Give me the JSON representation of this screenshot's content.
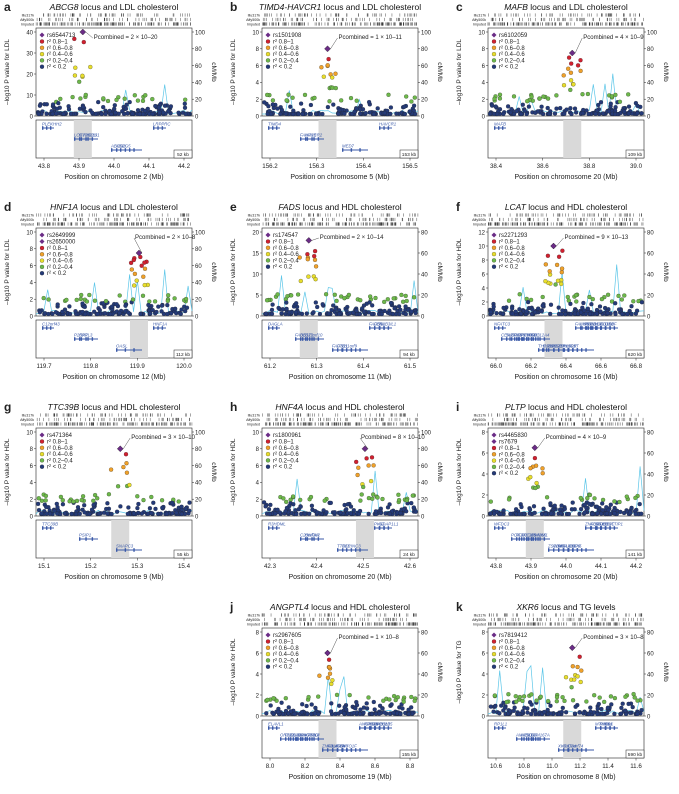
{
  "colors": {
    "r2_08_1": "#d1202f",
    "r2_06_08": "#f0a12a",
    "r2_04_06": "#e8de2c",
    "r2_02_04": "#6db84a",
    "r2_lt_02": "#243a78",
    "lead_snp": "#6b2c86",
    "recomb_line": "#5cc6e8",
    "gene": "#3b5aa8",
    "highlight": "#d9d9d9"
  },
  "track_labels": [
    "Illu317k",
    "Affy500k",
    "Imputed"
  ],
  "legend_r2": [
    "r² 0.8–1",
    "r² 0.6–0.8",
    "r² 0.4–0.6",
    "r² 0.2–0.4",
    "r² < 0.2"
  ],
  "panels": [
    {
      "letter": "a",
      "gene": "ABCG8",
      "title_rest": " locus and LDL cholesterol",
      "ylabel": "–log10 P value for LDL",
      "y2label": "cM/Mb",
      "yticks": [
        "0",
        "10",
        "20",
        "30",
        "40"
      ],
      "y2ticks": [
        "0",
        "20",
        "40",
        "60",
        "80",
        "100"
      ],
      "xlabel": "Position on chromosome 2 (Mb)",
      "xticks": [
        "43.8",
        "43.9",
        "44.0",
        "44.1",
        "44.2"
      ],
      "snps": [
        "rs6544713"
      ],
      "pcomb": "Pcombined = 2 × 10–20",
      "scale": "52 kb",
      "genes": [
        "PLEKHH2",
        "DYNC2LI1",
        "ABCG5",
        "LRPPRC",
        "LOC729819",
        "ABCG8"
      ],
      "chart_data": {
        "type": "scatter",
        "y_range": [
          0,
          40
        ],
        "lead_x": 44.0,
        "lead_y": 40
      }
    },
    {
      "letter": "b",
      "gene": "TIMD4-HAVCR1",
      "title_rest": " locus and LDL cholesterol",
      "ylabel": "–log10 P value for LDL",
      "y2label": "cM/Mb",
      "yticks": [
        "0",
        "2",
        "4",
        "6",
        "8",
        "10"
      ],
      "y2ticks": [
        "0",
        "20",
        "40",
        "60",
        "80",
        "100"
      ],
      "xlabel": "Position on chromosome 5 (Mb)",
      "xticks": [
        "156.2",
        "156.3",
        "156.4",
        "156.5"
      ],
      "snps": [
        "rs1501908"
      ],
      "pcomb": "Pcombined = 1 × 10–11",
      "scale": "153 kb",
      "genes": [
        "TIMD4",
        "HAVCR2",
        "MED7",
        "HAVCR1",
        "FAM71B"
      ],
      "chart_data": {
        "type": "scatter",
        "y_range": [
          0,
          10
        ],
        "lead_x": 156.32,
        "lead_y": 8
      }
    },
    {
      "letter": "c",
      "gene": "MAFB",
      "title_rest": " locus and LDL cholesterol",
      "ylabel": "–log10 P value for LDL",
      "y2label": "cM/Mb",
      "yticks": [
        "0",
        "2",
        "4",
        "6",
        "8",
        "10"
      ],
      "y2ticks": [
        "0",
        "20",
        "40",
        "60",
        "80",
        "100"
      ],
      "xlabel": "Position on chromosome 20 (Mb)",
      "xticks": [
        "38.4",
        "38.6",
        "38.8",
        "39.0"
      ],
      "snps": [
        "rs6102059"
      ],
      "pcomb": "Pcombined = 4 × 10–9",
      "scale": "109 kb",
      "genes": [
        "MAFB"
      ],
      "chart_data": {
        "type": "scatter",
        "y_range": [
          0,
          10
        ],
        "lead_x": 38.63,
        "lead_y": 7.5
      }
    },
    {
      "letter": "d",
      "gene": "HNF1A",
      "title_rest": " locus and LDL cholesterol",
      "ylabel": "–log10 P value for LDL",
      "y2label": "cM/Mb",
      "yticks": [
        "0",
        "2",
        "4",
        "6",
        "8",
        "10"
      ],
      "y2ticks": [
        "0",
        "20",
        "40",
        "60",
        "80",
        "100"
      ],
      "xlabel": "Position on chromosome 12 (Mb)",
      "xticks": [
        "119.7",
        "119.8",
        "119.9",
        "120.0"
      ],
      "snps": [
        "rs2649999",
        "rs2650000"
      ],
      "pcomb": "Pcombined = 2 × 10–8",
      "scale": "112 kb",
      "genes": [
        "C12orf43",
        "SPPL3",
        "OASL",
        "HNF1A",
        "P2RX7"
      ],
      "chart_data": {
        "type": "scatter",
        "y_range": [
          0,
          10
        ],
        "lead_x": 119.9,
        "lead_y": 7.5
      }
    },
    {
      "letter": "e",
      "gene": "FADS",
      "title_rest": " locus and HDL cholesterol",
      "ylabel": "–log10 P value for HDL",
      "y2label": "cM/Mb",
      "yticks": [
        "0",
        "5",
        "10",
        "15",
        "20"
      ],
      "y2ticks": [
        "0",
        "20",
        "40",
        "60",
        "80"
      ],
      "xlabel": "Position on chromosome 11 (Mb)",
      "xticks": [
        "61.2",
        "61.3",
        "61.4",
        "61.5"
      ],
      "snps": [
        "rs174547"
      ],
      "pcomb": "Pcombined = 2 × 10–14",
      "scale": "94 kb",
      "genes": [
        "DAGLA",
        "C11orf10",
        "C11orf9",
        "RAB3IL1",
        "BEST1",
        "FTH1",
        "FEN1",
        "FADS1",
        "FADS2",
        "FADS3"
      ],
      "chart_data": {
        "type": "scatter",
        "y_range": [
          0,
          20
        ],
        "lead_x": 61.33,
        "lead_y": 18
      }
    },
    {
      "letter": "f",
      "gene": "LCAT",
      "title_rest": " locus and HDL cholesterol",
      "ylabel": "–log10 P value for HDL",
      "y2label": "cM/Mb",
      "yticks": [
        "0",
        "2",
        "4",
        "6",
        "8",
        "10",
        "12"
      ],
      "y2ticks": [
        "0",
        "20",
        "40",
        "60",
        "80"
      ],
      "xlabel": "Position on chromosome 16 (Mb)",
      "xticks": [
        "66.0",
        "66.2",
        "66.4",
        "66.6",
        "66.8"
      ],
      "snps": [
        "rs2271293"
      ],
      "pcomb": "Pcombined = 9 × 10–13",
      "scale": "620 kb",
      "genes": [
        "NFATC3",
        "SLC12A4",
        "LCAT",
        "CTCF",
        "TPPP3",
        "RLTPR",
        "DDX28",
        "PRMT7",
        "ZDHHC1",
        "HSD11B2",
        "ATP6V0D1",
        "AGRP",
        "EDC4",
        "DPEP3",
        "DPEP2",
        "NRN1L",
        "SLC7A6",
        "ESRP2",
        "LYPLA3",
        "CENPT",
        "THAP11",
        "FAM65A"
      ],
      "chart_data": {
        "type": "scatter",
        "y_range": [
          0,
          12
        ],
        "lead_x": 66.42,
        "lead_y": 10
      }
    },
    {
      "letter": "g",
      "gene": "TTC39B",
      "title_rest": " locus and HDL cholesterol",
      "ylabel": "–log10 P value for HDL",
      "y2label": "cM/Mb",
      "yticks": [
        "0",
        "2",
        "4",
        "6",
        "8",
        "10"
      ],
      "y2ticks": [
        "0",
        "20",
        "40",
        "60",
        "80",
        "100"
      ],
      "xlabel": "Position on chromosome 9 (Mb)",
      "xticks": [
        "15.1",
        "15.2",
        "15.3",
        "15.4"
      ],
      "snps": [
        "rs471364"
      ],
      "pcomb": "Pcombined = 3 × 10–10",
      "scale": "55 kb",
      "genes": [
        "TTC39B",
        "PSIP1",
        "SNAPC3"
      ],
      "chart_data": {
        "type": "scatter",
        "y_range": [
          0,
          10
        ],
        "lead_x": 15.29,
        "lead_y": 8
      }
    },
    {
      "letter": "h",
      "gene": "HNF4A",
      "title_rest": " locus and HDL cholesterol",
      "ylabel": "–log10 P value for HDL",
      "y2label": "cM/Mb",
      "yticks": [
        "0",
        "2",
        "4",
        "6",
        "8",
        "10"
      ],
      "y2ticks": [
        "0",
        "20",
        "40",
        "60",
        "80",
        "100"
      ],
      "xlabel": "Position on chromosome 20 (Mb)",
      "xticks": [
        "42.3",
        "42.4",
        "42.5",
        "42.6"
      ],
      "snps": [
        "rs1800961"
      ],
      "pcomb": "Pcombined = 8 × 10–10",
      "scale": "24 kb",
      "genes": [
        "R3HDML",
        "HNF4A",
        "SERINC3",
        "GDAP1L1",
        "C20orf142",
        "TTPAL",
        "PKIG"
      ],
      "chart_data": {
        "type": "scatter",
        "y_range": [
          0,
          10
        ],
        "lead_x": 42.47,
        "lead_y": 8
      }
    },
    {
      "letter": "i",
      "gene": "PLTP",
      "title_rest": " locus and HDL cholesterol",
      "ylabel": "–log10 P value for HDL",
      "y2label": "cM/Mb",
      "yticks": [
        "0",
        "2",
        "4",
        "6",
        "8"
      ],
      "y2ticks": [
        "0",
        "20",
        "40",
        "60",
        "80"
      ],
      "xlabel": "Position on chromosome 20 (Mb)",
      "xticks": [
        "43.8",
        "43.9",
        "44.0",
        "44.1",
        "44.2"
      ],
      "snps": [
        "rs4465830",
        "rs7679"
      ],
      "pcomb": "Pcombined = 4 × 10–9",
      "scale": "141 kb",
      "genes": [
        "WFDC3",
        "ZSWIM1",
        "MMP9",
        "DNTTIP1",
        "C20orf165",
        "SLC12A5",
        "UBE2C",
        "NCOA5",
        "DNAJC5",
        "SNX21",
        "PLTP",
        "CD40",
        "ACOT8",
        "PCIF1",
        "ZSWIM3",
        "ZNF335"
      ],
      "chart_data": {
        "type": "scatter",
        "y_range": [
          0,
          8
        ],
        "lead_x": 44.05,
        "lead_y": 6.5
      }
    },
    {
      "letter": "j",
      "gene": "ANGPTL4",
      "title_rest": " locus and HDL cholesterol",
      "ylabel": "–log10 P value for HDL",
      "y2label": "cM/Mb",
      "yticks": [
        "0",
        "2",
        "4",
        "6",
        "8"
      ],
      "y2ticks": [
        "0",
        "20",
        "40",
        "60",
        "80"
      ],
      "xlabel": "Position on chromosome 19 (Mb)",
      "xticks": [
        "8.0",
        "8.2",
        "8.4",
        "8.6",
        "8.8"
      ],
      "snps": [
        "rs2967605"
      ],
      "pcomb": "Pcombined = 1 × 10–8",
      "scale": "155 kb",
      "genes": [
        "ELAVL1",
        "KANK3",
        "MYO1F",
        "CCL25",
        "ANGPTL4",
        "FBN3",
        "RAB11B",
        "ADAMTS10",
        "LASS4",
        "MARCH2",
        "CD320",
        "NDUFA7",
        "RPS28",
        "PNPLA6",
        "ZNF414",
        "ANGPTL4",
        "ORZZ1"
      ],
      "chart_data": {
        "type": "scatter",
        "y_range": [
          0,
          8
        ],
        "lead_x": 8.33,
        "lead_y": 6
      }
    },
    {
      "letter": "k",
      "gene": "XKR6",
      "title_rest": " locus and TG levels",
      "ylabel": "–log10 P value for TG",
      "y2label": "cM/Mb",
      "yticks": [
        "0",
        "2",
        "4",
        "6",
        "8"
      ],
      "y2ticks": [
        "0",
        "20",
        "40",
        "60",
        "80"
      ],
      "xlabel": "Position on chromosome 8 (Mb)",
      "xticks": [
        "10.6",
        "10.8",
        "11.0",
        "11.2",
        "11.4",
        "11.6"
      ],
      "snps": [
        "rs7819412"
      ],
      "pcomb": "Pcombined = 3 × 10–8",
      "scale": "590 kb",
      "genes": [
        "RP1L1",
        "FAM167A",
        "C8orf74",
        "BLK",
        "SOX7",
        "GATA4",
        "PINX1",
        "NEIL2",
        "XKR6",
        "MTMR9",
        "AMAC1L2"
      ],
      "chart_data": {
        "type": "scatter",
        "y_range": [
          0,
          8
        ],
        "lead_x": 10.95,
        "lead_y": 6.5
      }
    }
  ]
}
